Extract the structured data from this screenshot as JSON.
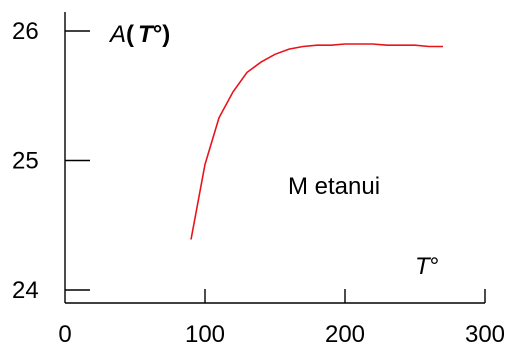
{
  "chart_data": {
    "type": "line",
    "y_axis_title": {
      "italic_part": "A",
      "bold_part": "(",
      "italic_part2": "T",
      "bold_part2": "°)"
    },
    "x_axis_title": {
      "italic_part": "T",
      "plain_part": "°"
    },
    "annotation": "M etanui",
    "xlim": [
      0,
      300
    ],
    "ylim": [
      24,
      26
    ],
    "x_ticks": [
      0,
      100,
      200,
      300
    ],
    "x_tick_labels": [
      "0",
      "100",
      "200",
      "300"
    ],
    "y_ticks": [
      24,
      25,
      26
    ],
    "y_tick_labels": [
      "24",
      "25",
      "26"
    ],
    "grid": false,
    "line_color": "#e8141c",
    "series": [
      {
        "x": [
          90,
          100,
          110,
          120,
          130,
          140,
          150,
          160,
          170,
          180,
          190,
          200,
          210,
          220,
          230,
          240,
          250,
          260,
          270
        ],
        "y": [
          24.39,
          24.97,
          25.33,
          25.53,
          25.68,
          25.76,
          25.82,
          25.86,
          25.88,
          25.89,
          25.89,
          25.9,
          25.9,
          25.9,
          25.89,
          25.89,
          25.89,
          25.88,
          25.88
        ]
      }
    ]
  }
}
